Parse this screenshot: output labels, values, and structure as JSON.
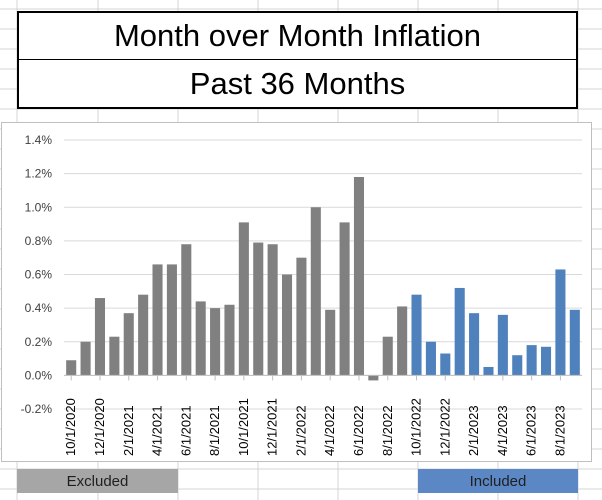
{
  "header": {
    "title": "Month over Month Inflation",
    "subtitle": "Past 36 Months"
  },
  "legend": {
    "excluded_label": "Excluded",
    "included_label": "Included"
  },
  "colors": {
    "excluded": "#808080",
    "included": "#4f81bd",
    "excluded_swatch": "#a6a6a6",
    "included_swatch": "#5b87c5",
    "gridline": "#d9d9d9",
    "sheet_grid": "#d4d4d4"
  },
  "chart_data": {
    "type": "bar",
    "title": "",
    "xlabel": "",
    "ylabel": "",
    "ylim": [
      -0.2,
      1.4
    ],
    "y_ticks": [
      -0.2,
      0,
      0.2,
      0.4,
      0.6,
      0.8,
      1.0,
      1.2,
      1.4
    ],
    "y_tick_labels": [
      "-0.2%",
      "0.0%",
      "0.2%",
      "0.4%",
      "0.6%",
      "0.8%",
      "1.0%",
      "1.2%",
      "1.4%"
    ],
    "grid": true,
    "categories": [
      "10/1/2020",
      "11/1/2020",
      "12/1/2020",
      "1/1/2021",
      "2/1/2021",
      "3/1/2021",
      "4/1/2021",
      "5/1/2021",
      "6/1/2021",
      "7/1/2021",
      "8/1/2021",
      "9/1/2021",
      "10/1/2021",
      "11/1/2021",
      "12/1/2021",
      "1/1/2022",
      "2/1/2022",
      "3/1/2022",
      "4/1/2022",
      "5/1/2022",
      "6/1/2022",
      "7/1/2022",
      "8/1/2022",
      "9/1/2022",
      "10/1/2022",
      "11/1/2022",
      "12/1/2022",
      "1/1/2023",
      "2/1/2023",
      "3/1/2023",
      "4/1/2023",
      "5/1/2023",
      "6/1/2023",
      "7/1/2023",
      "8/1/2023",
      "9/1/2023"
    ],
    "x_tick_labels": [
      "10/1/2020",
      "12/1/2020",
      "2/1/2021",
      "4/1/2021",
      "6/1/2021",
      "8/1/2021",
      "10/1/2021",
      "12/1/2021",
      "2/1/2022",
      "4/1/2022",
      "6/1/2022",
      "8/1/2022",
      "10/1/2022",
      "12/1/2022",
      "2/1/2023",
      "4/1/2023",
      "6/1/2023",
      "8/1/2023"
    ],
    "values": [
      0.09,
      0.2,
      0.46,
      0.23,
      0.37,
      0.48,
      0.66,
      0.66,
      0.78,
      0.44,
      0.4,
      0.42,
      0.91,
      0.79,
      0.78,
      0.6,
      0.7,
      1.0,
      0.39,
      0.91,
      1.18,
      -0.03,
      0.23,
      0.41,
      0.48,
      0.2,
      0.13,
      0.52,
      0.37,
      0.05,
      0.36,
      0.12,
      0.18,
      0.17,
      0.63,
      0.39
    ],
    "groups": [
      "excluded",
      "excluded",
      "excluded",
      "excluded",
      "excluded",
      "excluded",
      "excluded",
      "excluded",
      "excluded",
      "excluded",
      "excluded",
      "excluded",
      "excluded",
      "excluded",
      "excluded",
      "excluded",
      "excluded",
      "excluded",
      "excluded",
      "excluded",
      "excluded",
      "excluded",
      "excluded",
      "excluded",
      "included",
      "included",
      "included",
      "included",
      "included",
      "included",
      "included",
      "included",
      "included",
      "included",
      "included",
      "included"
    ]
  }
}
